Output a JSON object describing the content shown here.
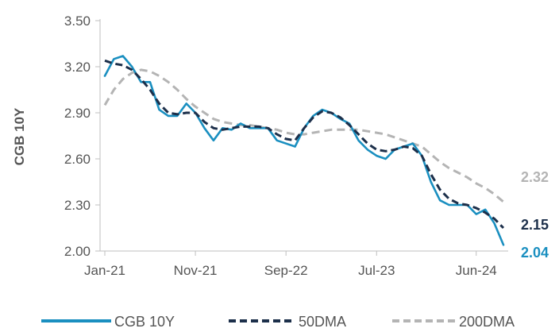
{
  "chart_data": {
    "type": "line",
    "ylabel": "CGB 10Y",
    "ylim": [
      2.0,
      3.5
    ],
    "yticks": [
      "3.50",
      "3.20",
      "2.90",
      "2.60",
      "2.30",
      "2.00"
    ],
    "xticks": [
      "Jan-21",
      "Nov-21",
      "Sep-22",
      "Jul-23",
      "Jun-24"
    ],
    "grid": false,
    "legend_position": "bottom",
    "series": [
      {
        "name": "CGB 10Y",
        "color": "#1a8fc0",
        "style": "solid",
        "end_label": "2.04",
        "x": [
          "2021-01",
          "2021-02",
          "2021-03",
          "2021-04",
          "2021-05",
          "2021-06",
          "2021-07",
          "2021-08",
          "2021-09",
          "2021-10",
          "2021-11",
          "2021-12",
          "2022-01",
          "2022-02",
          "2022-03",
          "2022-04",
          "2022-05",
          "2022-06",
          "2022-07",
          "2022-08",
          "2022-09",
          "2022-10",
          "2022-11",
          "2022-12",
          "2023-01",
          "2023-02",
          "2023-03",
          "2023-04",
          "2023-05",
          "2023-06",
          "2023-07",
          "2023-08",
          "2023-09",
          "2023-10",
          "2023-11",
          "2023-12",
          "2024-01",
          "2024-02",
          "2024-03",
          "2024-04",
          "2024-05",
          "2024-06",
          "2024-07",
          "2024-08",
          "2024-09"
        ],
        "values": [
          3.14,
          3.25,
          3.27,
          3.2,
          3.1,
          3.1,
          2.92,
          2.88,
          2.88,
          2.96,
          2.9,
          2.8,
          2.72,
          2.8,
          2.79,
          2.83,
          2.8,
          2.8,
          2.8,
          2.72,
          2.7,
          2.68,
          2.8,
          2.88,
          2.92,
          2.9,
          2.86,
          2.83,
          2.72,
          2.66,
          2.62,
          2.6,
          2.66,
          2.68,
          2.7,
          2.62,
          2.45,
          2.33,
          2.3,
          2.3,
          2.3,
          2.24,
          2.27,
          2.18,
          2.04
        ]
      },
      {
        "name": "50DMA",
        "color": "#1c2f4a",
        "style": "dashed",
        "end_label": "2.15",
        "x": [
          "2021-01",
          "2021-02",
          "2021-03",
          "2021-04",
          "2021-05",
          "2021-06",
          "2021-07",
          "2021-08",
          "2021-09",
          "2021-10",
          "2021-11",
          "2021-12",
          "2022-01",
          "2022-02",
          "2022-03",
          "2022-04",
          "2022-05",
          "2022-06",
          "2022-07",
          "2022-08",
          "2022-09",
          "2022-10",
          "2022-11",
          "2022-12",
          "2023-01",
          "2023-02",
          "2023-03",
          "2023-04",
          "2023-05",
          "2023-06",
          "2023-07",
          "2023-08",
          "2023-09",
          "2023-10",
          "2023-11",
          "2023-12",
          "2024-01",
          "2024-02",
          "2024-03",
          "2024-04",
          "2024-05",
          "2024-06",
          "2024-07",
          "2024-08",
          "2024-09"
        ],
        "values": [
          3.24,
          3.22,
          3.21,
          3.18,
          3.12,
          3.05,
          2.96,
          2.9,
          2.89,
          2.9,
          2.9,
          2.84,
          2.8,
          2.79,
          2.8,
          2.81,
          2.81,
          2.81,
          2.8,
          2.76,
          2.73,
          2.72,
          2.8,
          2.87,
          2.91,
          2.9,
          2.87,
          2.82,
          2.76,
          2.7,
          2.66,
          2.65,
          2.66,
          2.68,
          2.67,
          2.62,
          2.5,
          2.4,
          2.34,
          2.31,
          2.3,
          2.28,
          2.25,
          2.21,
          2.15
        ]
      },
      {
        "name": "200DMA",
        "color": "#b4b4b4",
        "style": "dashed",
        "end_label": "2.32",
        "x": [
          "2021-01",
          "2021-02",
          "2021-03",
          "2021-04",
          "2021-05",
          "2021-06",
          "2021-07",
          "2021-08",
          "2021-09",
          "2021-10",
          "2021-11",
          "2021-12",
          "2022-01",
          "2022-02",
          "2022-03",
          "2022-04",
          "2022-05",
          "2022-06",
          "2022-07",
          "2022-08",
          "2022-09",
          "2022-10",
          "2022-11",
          "2022-12",
          "2023-01",
          "2023-02",
          "2023-03",
          "2023-04",
          "2023-05",
          "2023-06",
          "2023-07",
          "2023-08",
          "2023-09",
          "2023-10",
          "2023-11",
          "2023-12",
          "2024-01",
          "2024-02",
          "2024-03",
          "2024-04",
          "2024-05",
          "2024-06",
          "2024-07",
          "2024-08",
          "2024-09"
        ],
        "values": [
          2.95,
          3.05,
          3.12,
          3.16,
          3.18,
          3.17,
          3.14,
          3.1,
          3.05,
          2.99,
          2.94,
          2.9,
          2.86,
          2.84,
          2.83,
          2.82,
          2.82,
          2.81,
          2.8,
          2.79,
          2.77,
          2.76,
          2.76,
          2.77,
          2.78,
          2.79,
          2.79,
          2.79,
          2.79,
          2.78,
          2.77,
          2.76,
          2.74,
          2.72,
          2.7,
          2.68,
          2.63,
          2.58,
          2.54,
          2.51,
          2.48,
          2.44,
          2.41,
          2.37,
          2.32
        ]
      }
    ]
  }
}
